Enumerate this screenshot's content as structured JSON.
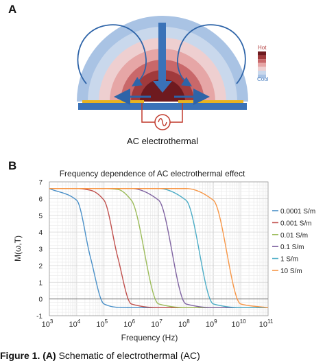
{
  "panel_a": {
    "letter": "A",
    "legend_hot": "Hot",
    "legend_cool": "Cool",
    "caption": "AC  electrothermal",
    "colors": {
      "substrate": "#3a72b8",
      "electrode": "#e8b320",
      "arrow": "#2e64a8",
      "circuit": "#c0392b"
    },
    "heat_scale": [
      "#6e1a1f",
      "#a03a3c",
      "#c9686a",
      "#e6a6a6",
      "#eecfd0",
      "#c9d8ec",
      "#a9c3e4"
    ]
  },
  "panel_b": {
    "letter": "B"
  },
  "chart_data": {
    "type": "line",
    "title": "Frequency dependence of AC electrothermal effect",
    "xlabel": "Frequency (Hz)",
    "ylabel": "M(ω,T)",
    "xscale": "log",
    "xlim": [
      1000,
      100000000000
    ],
    "ylim": [
      -1,
      7
    ],
    "x_ticks": [
      {
        "base": "10",
        "exp": "3",
        "value": 1000
      },
      {
        "base": "10",
        "exp": "4",
        "value": 10000
      },
      {
        "base": "10",
        "exp": "5",
        "value": 100000
      },
      {
        "base": "10",
        "exp": "6",
        "value": 1000000
      },
      {
        "base": "10",
        "exp": "7",
        "value": 10000000
      },
      {
        "base": "10",
        "exp": "8",
        "value": 100000000
      },
      {
        "base": "10",
        "exp": "9",
        "value": 1000000000
      },
      {
        "base": "10",
        "exp": "10",
        "value": 10000000000
      },
      {
        "base": "10",
        "exp": "11",
        "value": 100000000000
      }
    ],
    "y_ticks": [
      "-1",
      "0",
      "1",
      "2",
      "3",
      "4",
      "5",
      "6",
      "7"
    ],
    "grid": true,
    "legend_position": "right",
    "x_values": [
      1000,
      10000,
      31623,
      100000,
      316228,
      1000000,
      10000000,
      100000000,
      1000000000,
      10000000000,
      100000000000
    ],
    "series": [
      {
        "name": "0.0001 S/m",
        "color": "#4a90c8",
        "values": [
          6.6,
          5.9,
          2.5,
          -0.3,
          -0.5,
          -0.52,
          -0.52,
          -0.52,
          -0.52,
          -0.52,
          -0.52
        ]
      },
      {
        "name": "0.001 S/m",
        "color": "#c0504d",
        "values": [
          6.6,
          6.6,
          6.5,
          5.9,
          2.5,
          -0.3,
          -0.52,
          -0.52,
          -0.52,
          -0.52,
          -0.52
        ]
      },
      {
        "name": "0.01 S/m",
        "color": "#9bbb59",
        "values": [
          6.6,
          6.6,
          6.6,
          6.6,
          6.55,
          5.9,
          -0.3,
          -0.52,
          -0.52,
          -0.52,
          -0.52
        ]
      },
      {
        "name": "0.1 S/m",
        "color": "#8064a2",
        "values": [
          6.6,
          6.6,
          6.6,
          6.6,
          6.6,
          6.6,
          5.9,
          -0.3,
          -0.52,
          -0.52,
          -0.52
        ]
      },
      {
        "name": "1 S/m",
        "color": "#4bacc6",
        "values": [
          6.6,
          6.6,
          6.6,
          6.6,
          6.6,
          6.6,
          6.6,
          5.9,
          -0.3,
          -0.52,
          -0.52
        ]
      },
      {
        "name": "10 S/m",
        "color": "#f79646",
        "values": [
          6.6,
          6.6,
          6.6,
          6.6,
          6.6,
          6.6,
          6.6,
          6.6,
          5.9,
          -0.3,
          -0.52
        ]
      }
    ]
  },
  "caption_text": {
    "bold_prefix": "Figure 1.",
    "bold_letter": "(A)",
    "rest": " Schematic of electrothermal (AC)"
  }
}
